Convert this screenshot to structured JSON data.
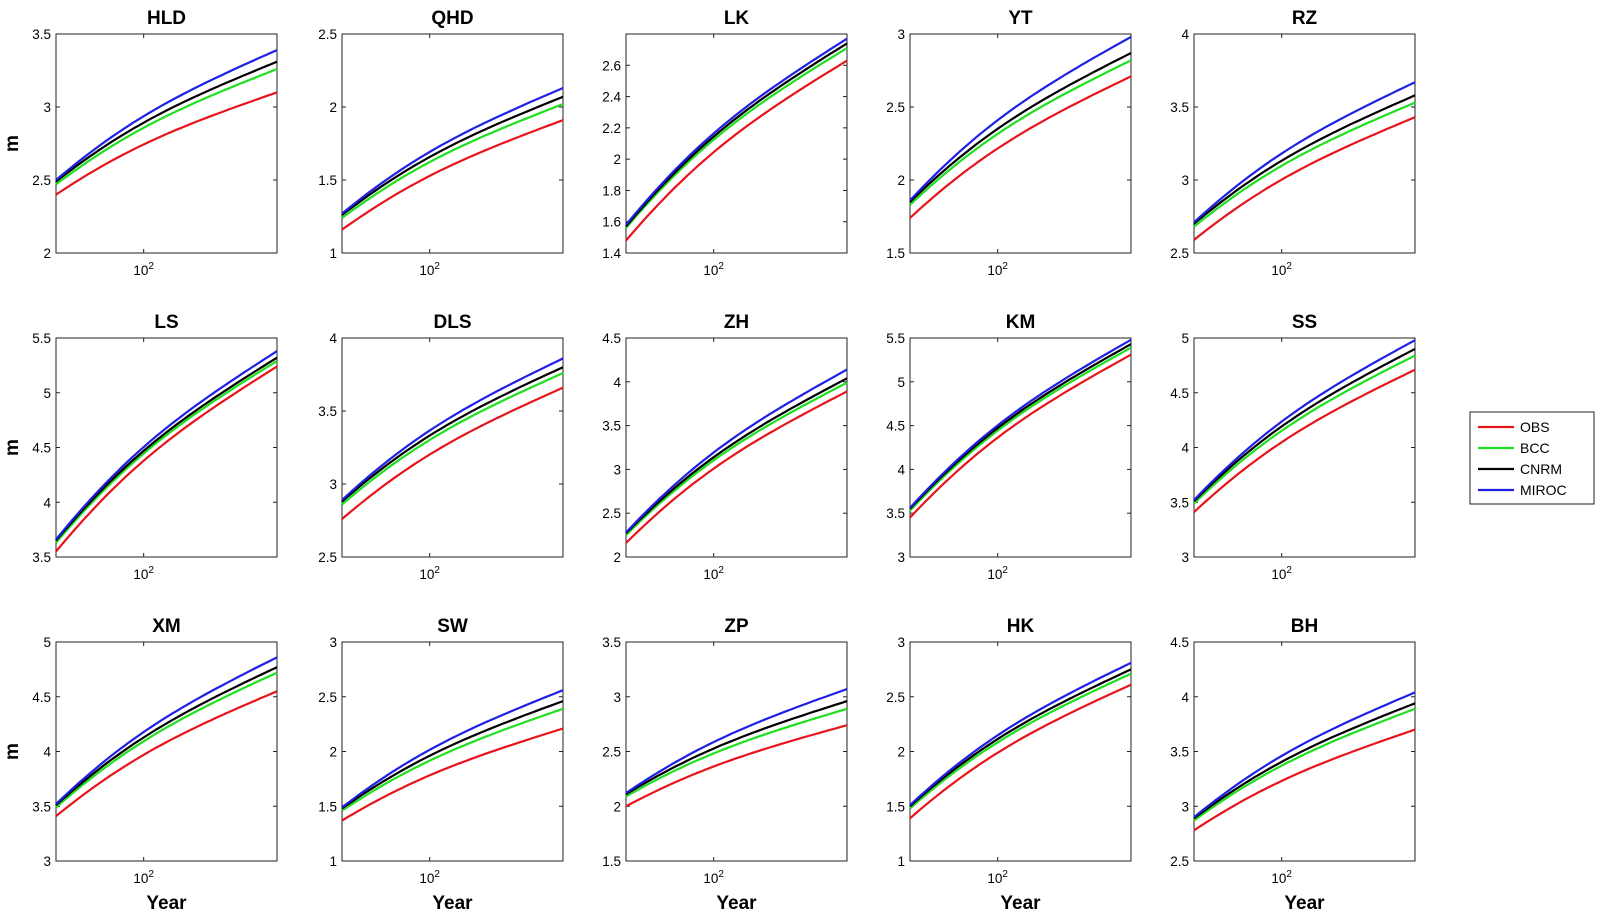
{
  "figure": {
    "ylabel": "m",
    "xlabel": "Year",
    "x_tick_label": "10",
    "x_tick_exponent": "2"
  },
  "legend": {
    "placement": "right",
    "entries": [
      {
        "name": "OBS",
        "color": "#e8141c"
      },
      {
        "name": "BCC",
        "color": "#1ee01e"
      },
      {
        "name": "CNRM",
        "color": "#000000"
      },
      {
        "name": "MIROC",
        "color": "#1f1fe6"
      }
    ]
  },
  "chart_data": [
    {
      "type": "line",
      "title": "HLD",
      "x": [
        10,
        1000
      ],
      "ylim": [
        2,
        3.5
      ],
      "yticks": [
        "2",
        "2.5",
        "3",
        "3.5"
      ],
      "series": [
        {
          "name": "OBS",
          "start": 2.4,
          "end": 3.1
        },
        {
          "name": "BCC",
          "start": 2.47,
          "end": 3.26
        },
        {
          "name": "CNRM",
          "start": 2.49,
          "end": 3.31
        },
        {
          "name": "MIROC",
          "start": 2.5,
          "end": 3.39
        }
      ]
    },
    {
      "type": "line",
      "title": "QHD",
      "x": [
        10,
        1000
      ],
      "ylim": [
        1,
        2.5
      ],
      "yticks": [
        "1",
        "1.5",
        "2",
        "2.5"
      ],
      "series": [
        {
          "name": "OBS",
          "start": 1.16,
          "end": 1.91
        },
        {
          "name": "BCC",
          "start": 1.24,
          "end": 2.02
        },
        {
          "name": "CNRM",
          "start": 1.26,
          "end": 2.07
        },
        {
          "name": "MIROC",
          "start": 1.27,
          "end": 2.13
        }
      ]
    },
    {
      "type": "line",
      "title": "LK",
      "x": [
        10,
        1000
      ],
      "ylim": [
        1.4,
        2.8
      ],
      "yticks": [
        "1.4",
        "1.6",
        "1.8",
        "2",
        "2.2",
        "2.4",
        "2.6"
      ],
      "series": [
        {
          "name": "OBS",
          "start": 1.48,
          "end": 2.63
        },
        {
          "name": "BCC",
          "start": 1.56,
          "end": 2.71
        },
        {
          "name": "CNRM",
          "start": 1.57,
          "end": 2.74
        },
        {
          "name": "MIROC",
          "start": 1.58,
          "end": 2.77
        }
      ]
    },
    {
      "type": "line",
      "title": "YT",
      "x": [
        10,
        1000
      ],
      "ylim": [
        1.5,
        3
      ],
      "yticks": [
        "1.5",
        "2",
        "2.5",
        "3"
      ],
      "series": [
        {
          "name": "OBS",
          "start": 1.74,
          "end": 2.71
        },
        {
          "name": "BCC",
          "start": 1.83,
          "end": 2.82
        },
        {
          "name": "CNRM",
          "start": 1.85,
          "end": 2.87
        },
        {
          "name": "MIROC",
          "start": 1.86,
          "end": 2.98
        }
      ]
    },
    {
      "type": "line",
      "title": "RZ",
      "x": [
        10,
        1000
      ],
      "ylim": [
        2.5,
        4
      ],
      "yticks": [
        "2.5",
        "3",
        "3.5",
        "4"
      ],
      "series": [
        {
          "name": "OBS",
          "start": 2.59,
          "end": 3.43
        },
        {
          "name": "BCC",
          "start": 2.68,
          "end": 3.53
        },
        {
          "name": "CNRM",
          "start": 2.7,
          "end": 3.58
        },
        {
          "name": "MIROC",
          "start": 2.71,
          "end": 3.67
        }
      ]
    },
    {
      "type": "line",
      "title": "LS",
      "x": [
        10,
        1000
      ],
      "ylim": [
        3.5,
        5.5
      ],
      "yticks": [
        "3.5",
        "4",
        "4.5",
        "5",
        "5.5"
      ],
      "series": [
        {
          "name": "OBS",
          "start": 3.55,
          "end": 5.24
        },
        {
          "name": "BCC",
          "start": 3.63,
          "end": 5.29
        },
        {
          "name": "CNRM",
          "start": 3.65,
          "end": 5.32
        },
        {
          "name": "MIROC",
          "start": 3.66,
          "end": 5.38
        }
      ]
    },
    {
      "type": "line",
      "title": "DLS",
      "x": [
        10,
        1000
      ],
      "ylim": [
        2.5,
        4
      ],
      "yticks": [
        "2.5",
        "3",
        "3.5",
        "4"
      ],
      "series": [
        {
          "name": "OBS",
          "start": 2.76,
          "end": 3.66
        },
        {
          "name": "BCC",
          "start": 2.86,
          "end": 3.76
        },
        {
          "name": "CNRM",
          "start": 2.88,
          "end": 3.8
        },
        {
          "name": "MIROC",
          "start": 2.89,
          "end": 3.86
        }
      ]
    },
    {
      "type": "line",
      "title": "ZH",
      "x": [
        10,
        1000
      ],
      "ylim": [
        2,
        4.5
      ],
      "yticks": [
        "2",
        "2.5",
        "3",
        "3.5",
        "4",
        "4.5"
      ],
      "series": [
        {
          "name": "OBS",
          "start": 2.16,
          "end": 3.89
        },
        {
          "name": "BCC",
          "start": 2.25,
          "end": 3.99
        },
        {
          "name": "CNRM",
          "start": 2.27,
          "end": 4.04
        },
        {
          "name": "MIROC",
          "start": 2.28,
          "end": 4.14
        }
      ]
    },
    {
      "type": "line",
      "title": "KM",
      "x": [
        10,
        1000
      ],
      "ylim": [
        3,
        5.5
      ],
      "yticks": [
        "3",
        "3.5",
        "4",
        "4.5",
        "5",
        "5.5"
      ],
      "series": [
        {
          "name": "OBS",
          "start": 3.45,
          "end": 5.31
        },
        {
          "name": "BCC",
          "start": 3.53,
          "end": 5.39
        },
        {
          "name": "CNRM",
          "start": 3.55,
          "end": 5.43
        },
        {
          "name": "MIROC",
          "start": 3.56,
          "end": 5.48
        }
      ]
    },
    {
      "type": "line",
      "title": "SS",
      "x": [
        10,
        1000
      ],
      "ylim": [
        3,
        5
      ],
      "yticks": [
        "3",
        "3.5",
        "4",
        "4.5",
        "5"
      ],
      "series": [
        {
          "name": "OBS",
          "start": 3.41,
          "end": 4.71
        },
        {
          "name": "BCC",
          "start": 3.49,
          "end": 4.84
        },
        {
          "name": "CNRM",
          "start": 3.51,
          "end": 4.9
        },
        {
          "name": "MIROC",
          "start": 3.52,
          "end": 4.98
        }
      ]
    },
    {
      "type": "line",
      "title": "XM",
      "x": [
        10,
        1000
      ],
      "ylim": [
        3,
        5
      ],
      "yticks": [
        "3",
        "3.5",
        "4",
        "4.5",
        "5"
      ],
      "series": [
        {
          "name": "OBS",
          "start": 3.41,
          "end": 4.55
        },
        {
          "name": "BCC",
          "start": 3.49,
          "end": 4.72
        },
        {
          "name": "CNRM",
          "start": 3.51,
          "end": 4.77
        },
        {
          "name": "MIROC",
          "start": 3.52,
          "end": 4.86
        }
      ]
    },
    {
      "type": "line",
      "title": "SW",
      "x": [
        10,
        1000
      ],
      "ylim": [
        1,
        3
      ],
      "yticks": [
        "1",
        "1.5",
        "2",
        "2.5",
        "3"
      ],
      "series": [
        {
          "name": "OBS",
          "start": 1.37,
          "end": 2.21
        },
        {
          "name": "BCC",
          "start": 1.46,
          "end": 2.39
        },
        {
          "name": "CNRM",
          "start": 1.48,
          "end": 2.46
        },
        {
          "name": "MIROC",
          "start": 1.49,
          "end": 2.56
        }
      ]
    },
    {
      "type": "line",
      "title": "ZP",
      "x": [
        10,
        1000
      ],
      "ylim": [
        1.5,
        3.5
      ],
      "yticks": [
        "1.5",
        "2",
        "2.5",
        "3",
        "3.5"
      ],
      "series": [
        {
          "name": "OBS",
          "start": 2.0,
          "end": 2.74
        },
        {
          "name": "BCC",
          "start": 2.09,
          "end": 2.89
        },
        {
          "name": "CNRM",
          "start": 2.11,
          "end": 2.96
        },
        {
          "name": "MIROC",
          "start": 2.12,
          "end": 3.07
        }
      ]
    },
    {
      "type": "line",
      "title": "HK",
      "x": [
        10,
        1000
      ],
      "ylim": [
        1,
        3
      ],
      "yticks": [
        "1",
        "1.5",
        "2",
        "2.5",
        "3"
      ],
      "series": [
        {
          "name": "OBS",
          "start": 1.39,
          "end": 2.61
        },
        {
          "name": "BCC",
          "start": 1.48,
          "end": 2.71
        },
        {
          "name": "CNRM",
          "start": 1.5,
          "end": 2.75
        },
        {
          "name": "MIROC",
          "start": 1.51,
          "end": 2.81
        }
      ]
    },
    {
      "type": "line",
      "title": "BH",
      "x": [
        10,
        1000
      ],
      "ylim": [
        2.5,
        4.5
      ],
      "yticks": [
        "2.5",
        "3",
        "3.5",
        "4",
        "4.5"
      ],
      "series": [
        {
          "name": "OBS",
          "start": 2.78,
          "end": 3.7
        },
        {
          "name": "BCC",
          "start": 2.87,
          "end": 3.89
        },
        {
          "name": "CNRM",
          "start": 2.89,
          "end": 3.94
        },
        {
          "name": "MIROC",
          "start": 2.9,
          "end": 4.04
        }
      ]
    }
  ]
}
